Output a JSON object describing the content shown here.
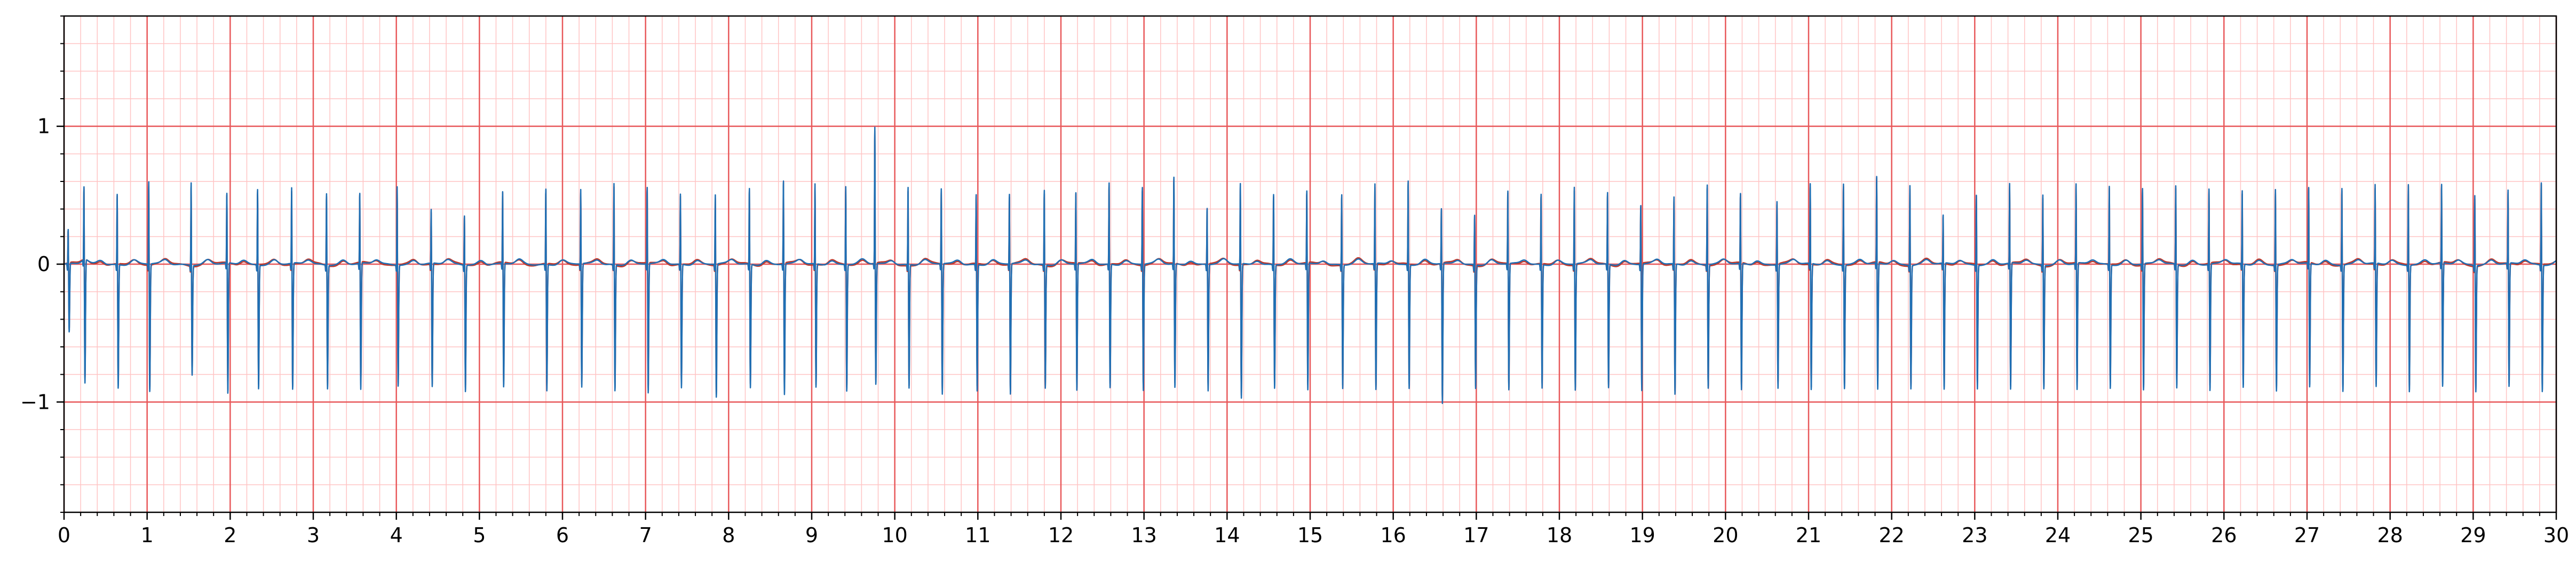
{
  "chart_data": {
    "type": "line",
    "title": "",
    "xlabel": "",
    "ylabel": "",
    "xlim": [
      0,
      30
    ],
    "ylim": [
      -1.8,
      1.8
    ],
    "x_ticks": [
      0,
      1,
      2,
      3,
      4,
      5,
      6,
      7,
      8,
      9,
      10,
      11,
      12,
      13,
      14,
      15,
      16,
      17,
      18,
      19,
      20,
      21,
      22,
      23,
      24,
      25,
      26,
      27,
      28,
      29,
      30
    ],
    "x_tick_labels": [
      "0",
      "1",
      "2",
      "3",
      "4",
      "5",
      "6",
      "7",
      "8",
      "9",
      "10",
      "11",
      "12",
      "13",
      "14",
      "15",
      "16",
      "17",
      "18",
      "19",
      "20",
      "21",
      "22",
      "23",
      "24",
      "25",
      "26",
      "27",
      "28",
      "29",
      "30"
    ],
    "y_ticks": [
      -1,
      0,
      1
    ],
    "y_tick_labels": [
      "−1",
      "0",
      "1"
    ],
    "grid": {
      "major_x_step": 1,
      "major_y_step": 1,
      "minor_x_step": 0.2,
      "minor_y_step": 0.2
    },
    "colors": {
      "major_grid": "#e8585a",
      "minor_grid": "#ffc4c4",
      "series_blue": "#1f6fb4",
      "series_red": "#c0392b",
      "axis": "#000000"
    },
    "series": [
      {
        "style": "thin signal, red trace overlaid by blue trace",
        "beat_times": [
          0.05,
          0.24,
          0.64,
          1.02,
          1.53,
          1.96,
          2.33,
          2.74,
          3.16,
          3.56,
          4.01,
          4.42,
          4.82,
          5.28,
          5.8,
          6.22,
          6.62,
          7.02,
          7.42,
          7.84,
          8.25,
          8.66,
          9.04,
          9.41,
          9.76,
          10.16,
          10.56,
          10.98,
          11.38,
          11.8,
          12.18,
          12.58,
          12.98,
          13.36,
          13.76,
          14.16,
          14.56,
          14.96,
          15.38,
          15.78,
          16.18,
          16.58,
          16.98,
          17.38,
          17.78,
          18.18,
          18.58,
          18.98,
          19.38,
          19.78,
          20.18,
          20.62,
          21.02,
          21.42,
          21.82,
          22.22,
          22.62,
          23.02,
          23.42,
          23.82,
          24.22,
          24.62,
          25.02,
          25.42,
          25.82,
          26.22,
          26.62,
          27.02,
          27.42,
          27.82,
          28.22,
          28.62,
          29.02,
          29.42,
          29.82
        ],
        "r_peaks": [
          0.3,
          0.62,
          0.6,
          0.69,
          0.68,
          0.6,
          0.64,
          0.64,
          0.61,
          0.6,
          0.66,
          0.48,
          0.45,
          0.61,
          0.64,
          0.63,
          0.68,
          0.65,
          0.6,
          0.6,
          0.64,
          0.7,
          0.67,
          0.66,
          1.08,
          0.65,
          0.64,
          0.6,
          0.6,
          0.63,
          0.61,
          0.68,
          0.65,
          0.72,
          0.5,
          0.68,
          0.6,
          0.62,
          0.6,
          0.67,
          0.7,
          0.5,
          0.45,
          0.62,
          0.6,
          0.65,
          0.61,
          0.52,
          0.58,
          0.67,
          0.6,
          0.55,
          0.67,
          0.68,
          0.72,
          0.67,
          0.44,
          0.6,
          0.67,
          0.6,
          0.67,
          0.66,
          0.64,
          0.66,
          0.64,
          0.62,
          0.64,
          0.64,
          0.65,
          0.66,
          0.68,
          0.66,
          0.6,
          0.62,
          0.69
        ],
        "s_troughs": [
          -0.5,
          -0.9,
          -0.9,
          -0.93,
          -0.8,
          -0.95,
          -0.9,
          -0.92,
          -0.9,
          -0.92,
          -0.88,
          -0.9,
          -0.92,
          -0.9,
          -0.92,
          -0.9,
          -0.92,
          -0.94,
          -0.9,
          -0.97,
          -0.9,
          -0.95,
          -0.9,
          -0.92,
          -0.88,
          -0.9,
          -0.95,
          -0.92,
          -0.95,
          -0.9,
          -0.92,
          -0.9,
          -0.92,
          -0.9,
          -0.92,
          -0.98,
          -0.9,
          -0.92,
          -0.9,
          -0.92,
          -0.9,
          -1.02,
          -0.9,
          -0.92,
          -0.9,
          -0.92,
          -0.9,
          -0.92,
          -0.95,
          -0.9,
          -0.92,
          -0.9,
          -0.92,
          -0.9,
          -0.92,
          -0.9,
          -0.92,
          -0.9,
          -0.92,
          -0.9,
          -0.92,
          -0.9,
          -0.92,
          -0.9,
          -0.92,
          -0.9,
          -0.92,
          -0.9,
          -0.92,
          -0.9,
          -0.92,
          -0.9,
          -0.92,
          -0.9,
          -0.92
        ]
      }
    ]
  }
}
